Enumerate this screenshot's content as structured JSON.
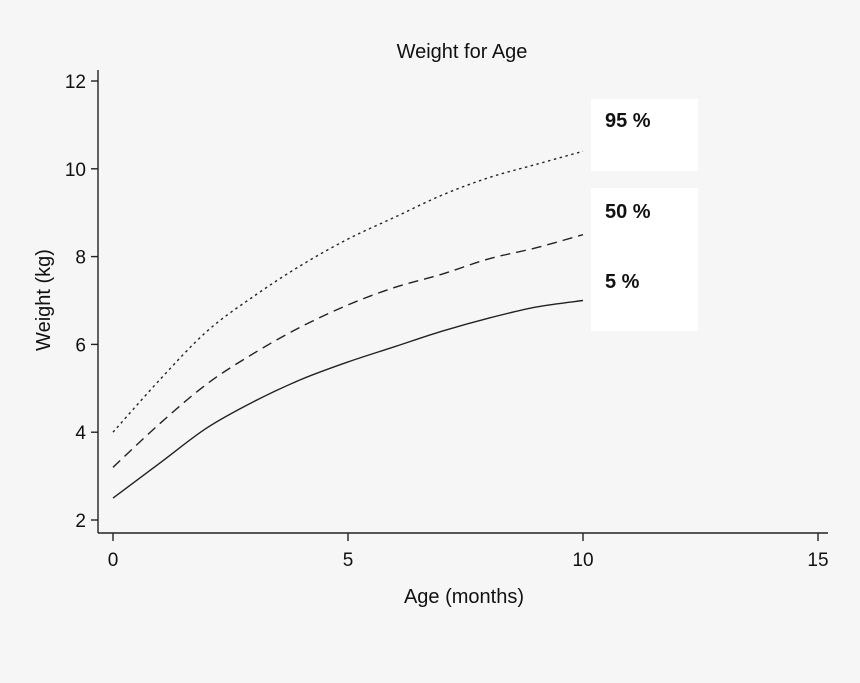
{
  "chart_data": {
    "type": "line",
    "title": "Weight for Age",
    "xlabel": "Age (months)",
    "ylabel": "Weight (kg)",
    "xlim": [
      0,
      15
    ],
    "ylim": [
      2,
      12
    ],
    "xticks": [
      0,
      5,
      10,
      15
    ],
    "yticks": [
      2,
      4,
      6,
      8,
      10,
      12
    ],
    "grid": false,
    "x": [
      0,
      1,
      2,
      3,
      4,
      5,
      6,
      7,
      8,
      9,
      10
    ],
    "series": [
      {
        "name": "95 %",
        "dash": "dotted",
        "values": [
          4.0,
          5.2,
          6.3,
          7.1,
          7.8,
          8.4,
          8.9,
          9.4,
          9.8,
          10.1,
          10.4
        ]
      },
      {
        "name": "50 %",
        "dash": "dashed",
        "values": [
          3.2,
          4.2,
          5.1,
          5.8,
          6.4,
          6.9,
          7.3,
          7.6,
          7.95,
          8.2,
          8.5
        ]
      },
      {
        "name": "5 %",
        "dash": "solid",
        "values": [
          2.5,
          3.3,
          4.1,
          4.7,
          5.2,
          5.6,
          5.95,
          6.3,
          6.6,
          6.85,
          7.0
        ]
      }
    ]
  }
}
